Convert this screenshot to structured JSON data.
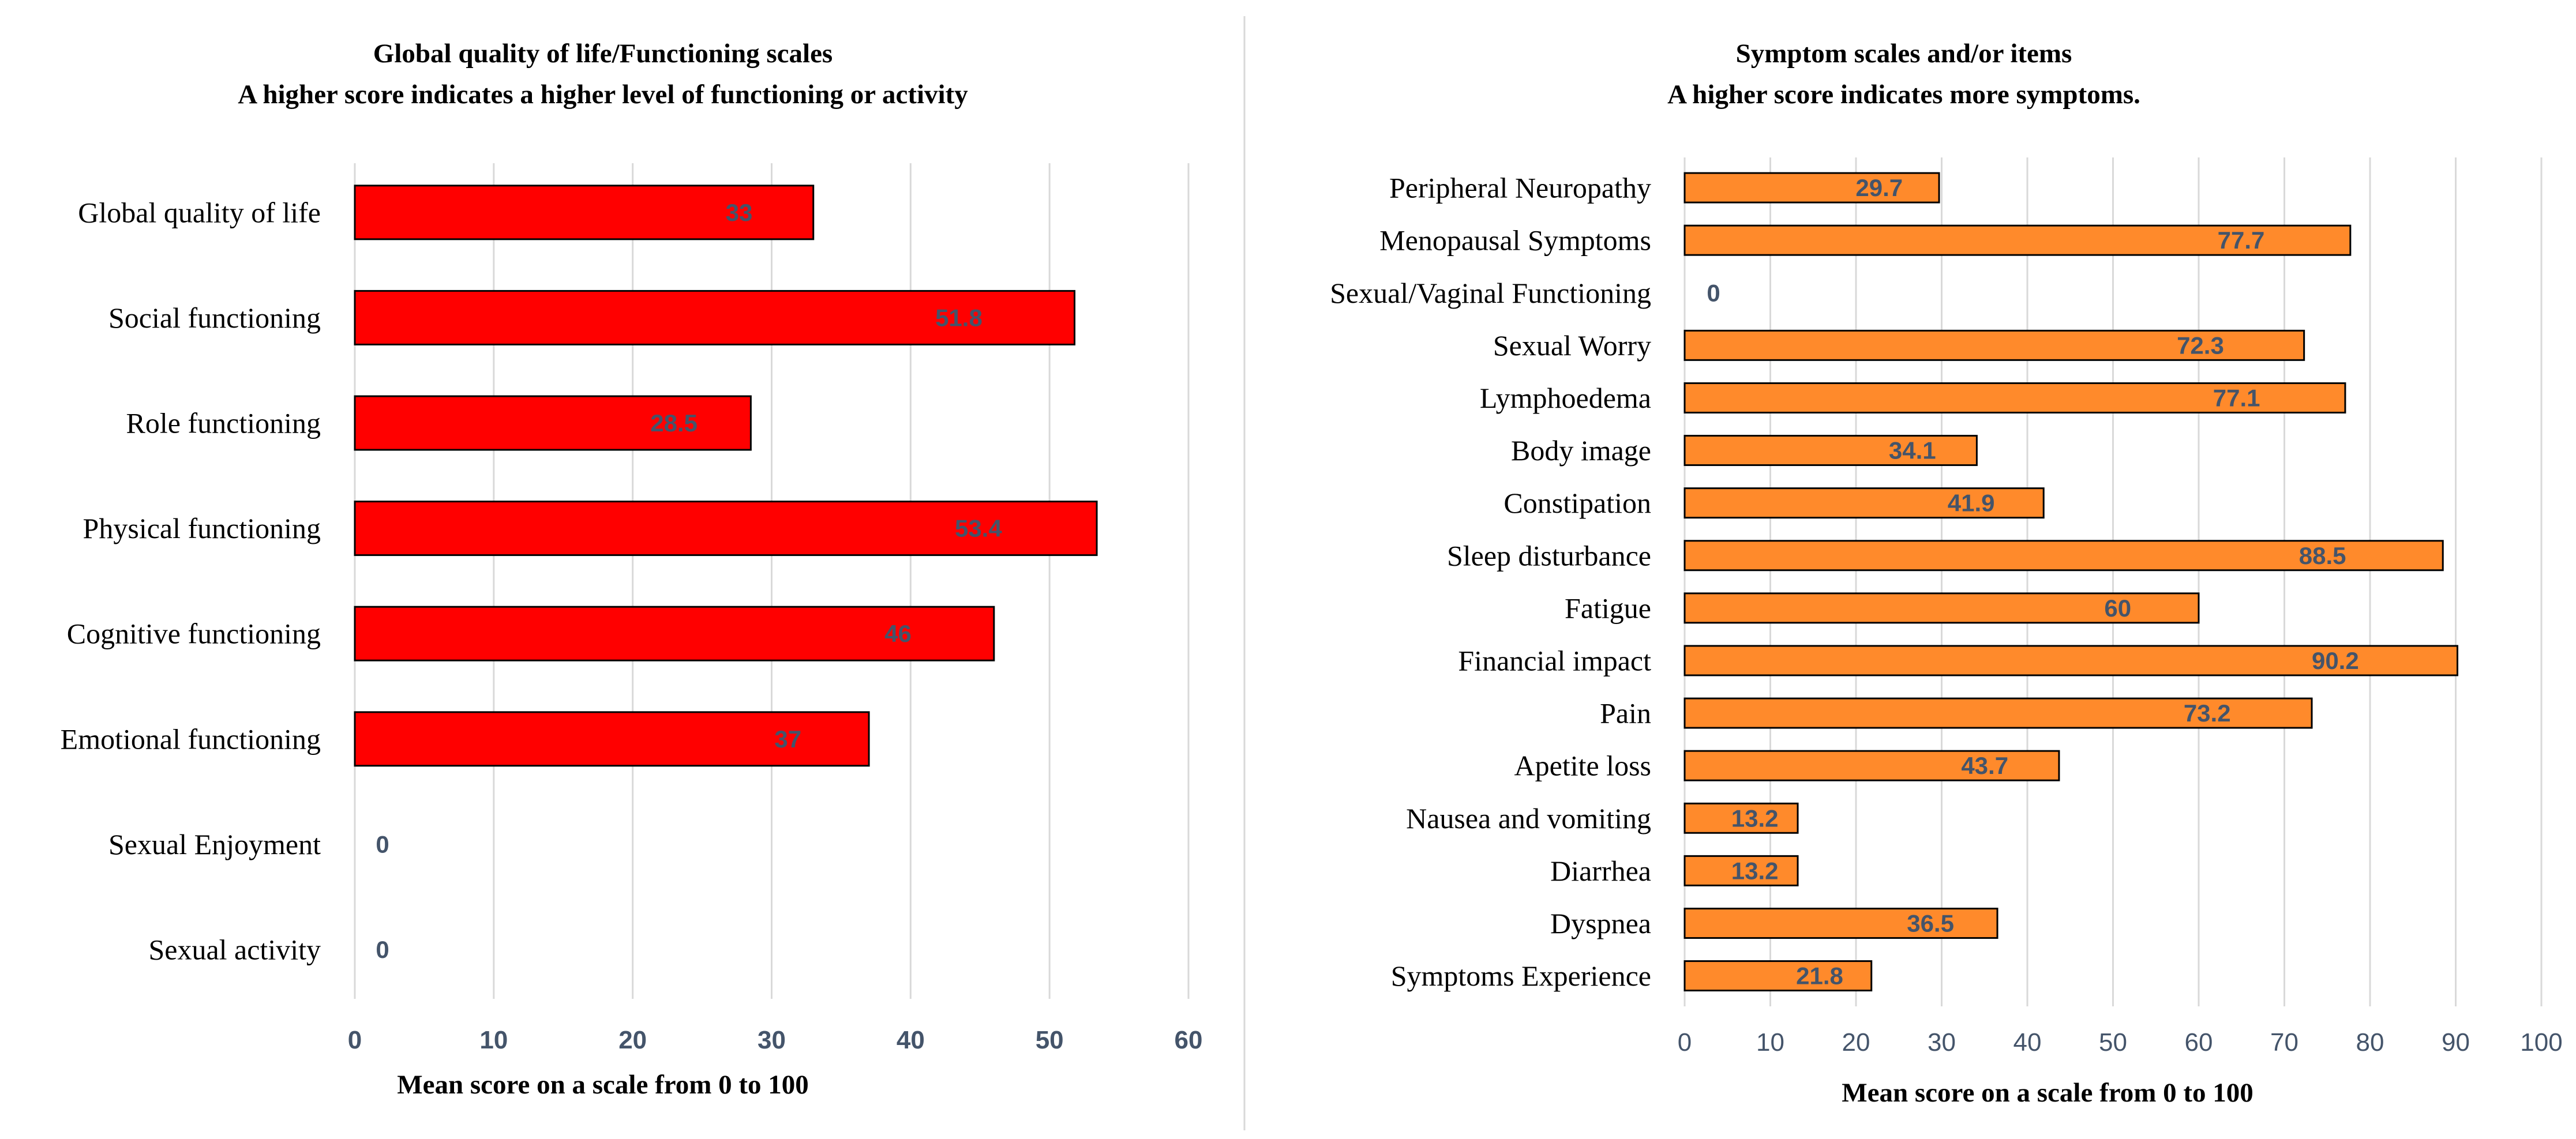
{
  "chart_data": [
    {
      "type": "bar",
      "orientation": "horizontal",
      "title": "Global quality of life/Functioning scales",
      "subtitle": "A higher score indicates a higher level of functioning or activity",
      "xlabel": "Mean score on a scale from 0 to 100",
      "ylabel": "",
      "xlim": [
        0,
        60
      ],
      "xticks": [
        0,
        10,
        20,
        30,
        40,
        50,
        60
      ],
      "grid": true,
      "bar_color": "#FF0000",
      "categories": [
        "Global quality of life",
        "Social functioning",
        "Role functioning",
        "Physical functioning",
        "Cognitive functioning",
        "Emotional functioning",
        "Sexual Enjoyment",
        "Sexual activity"
      ],
      "values": [
        33,
        51.8,
        28.5,
        53.4,
        46,
        37,
        0,
        0
      ],
      "labels": [
        "33",
        "51.8",
        "28.5",
        "53.4",
        "46",
        "37",
        "0",
        "0"
      ]
    },
    {
      "type": "bar",
      "orientation": "horizontal",
      "title": "Symptom scales and/or items",
      "subtitle": "A higher score indicates more symptoms.",
      "xlabel": "Mean score on a scale from 0 to 100",
      "ylabel": "",
      "xlim": [
        0,
        100
      ],
      "xticks": [
        0,
        10,
        20,
        30,
        40,
        50,
        60,
        70,
        80,
        90,
        100
      ],
      "grid": true,
      "bar_color": "#FF8A2B",
      "categories": [
        "Peripheral Neuropathy",
        "Menopausal Symptoms",
        "Sexual/Vaginal Functioning",
        "Sexual Worry",
        "Lymphoedema",
        "Body image",
        "Constipation",
        "Sleep disturbance",
        "Fatigue",
        "Financial impact",
        "Pain",
        "Apetite loss",
        "Nausea and vomiting",
        "Diarrhea",
        "Dyspnea",
        "Symptoms Experience"
      ],
      "values": [
        29.7,
        77.7,
        0,
        72.3,
        77.1,
        34.1,
        41.9,
        88.5,
        60,
        90.2,
        73.2,
        43.7,
        13.2,
        13.2,
        36.5,
        21.8
      ],
      "labels": [
        "29.7",
        "77.7",
        "0",
        "72.3",
        "77.1",
        "34.1",
        "41.9",
        "88.5",
        "60",
        "90.2",
        "73.2",
        "43.7",
        "13.2",
        "13.2",
        "36.5",
        "21.8"
      ]
    }
  ]
}
